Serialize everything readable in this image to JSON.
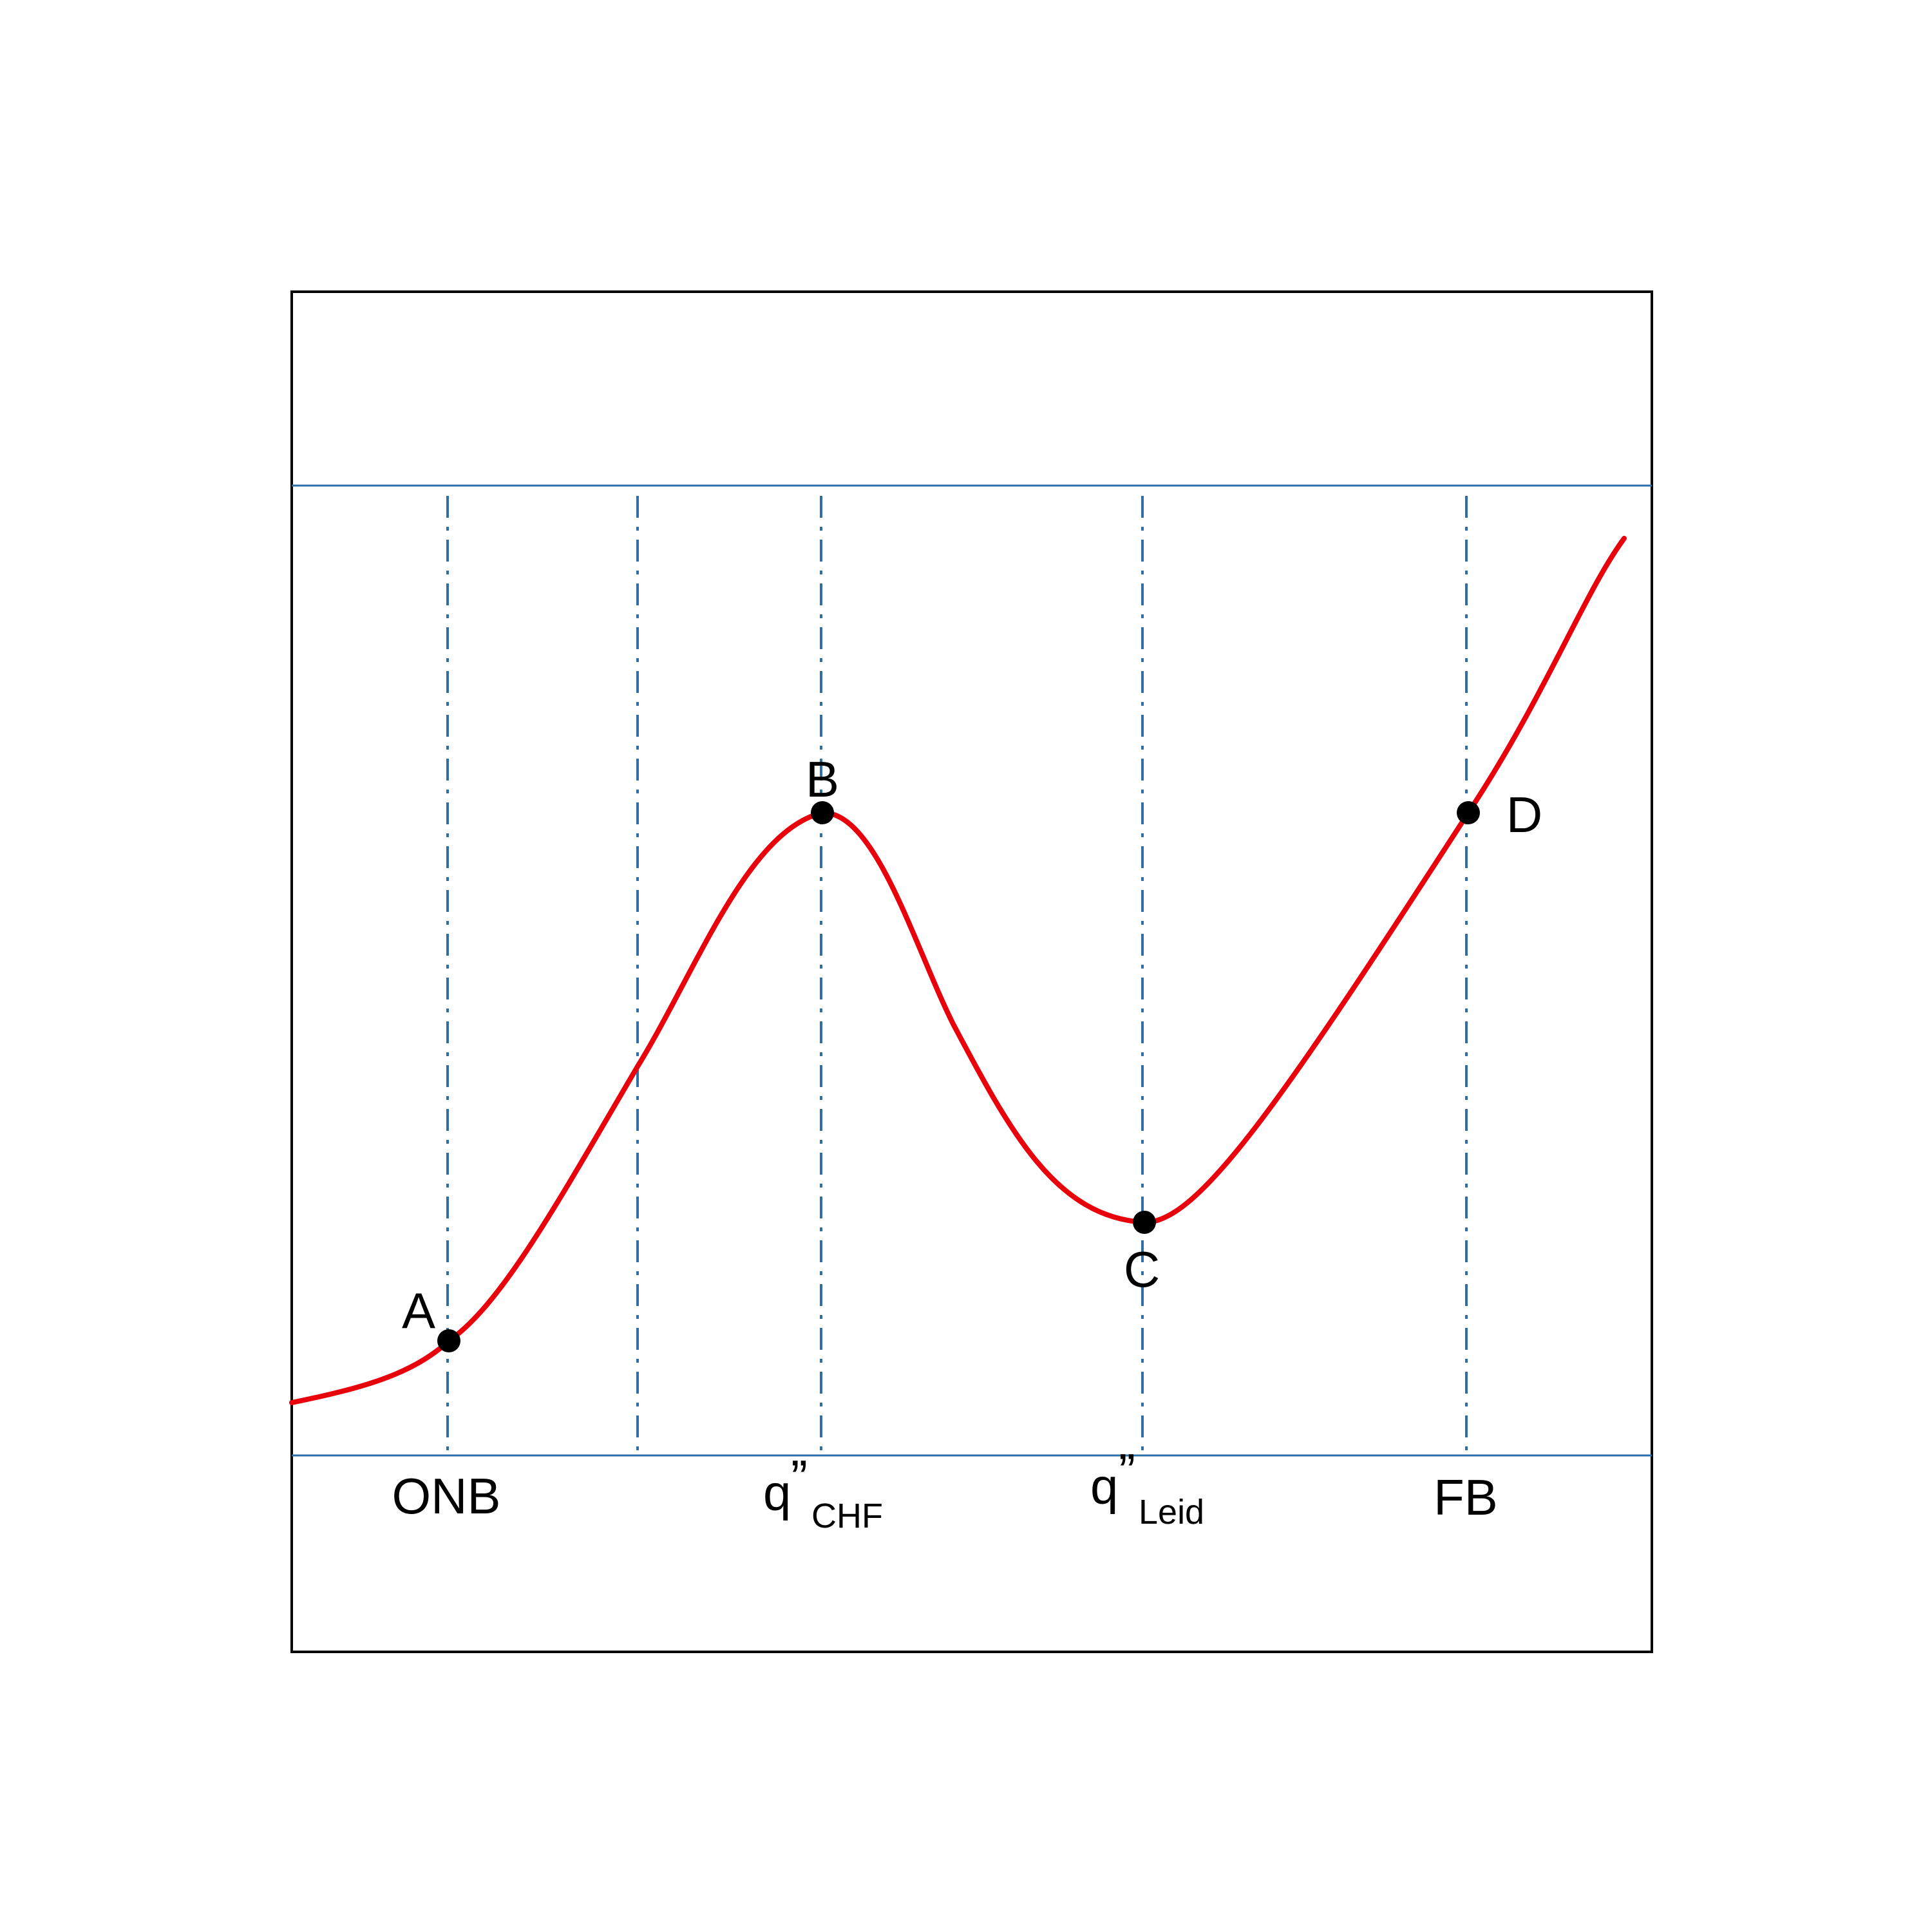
{
  "colors": {
    "curve": "#e8000b",
    "guide": "#2e6fa8",
    "frame": "#000000",
    "point": "#000000"
  },
  "points": {
    "a": "A",
    "b": "B",
    "c": "C",
    "d": "D"
  },
  "axis_labels": {
    "onb": "ONB",
    "q": "q",
    "prime": "”",
    "chf_sub": "CHF",
    "leid_sub": "Leid",
    "fb": "FB"
  }
}
